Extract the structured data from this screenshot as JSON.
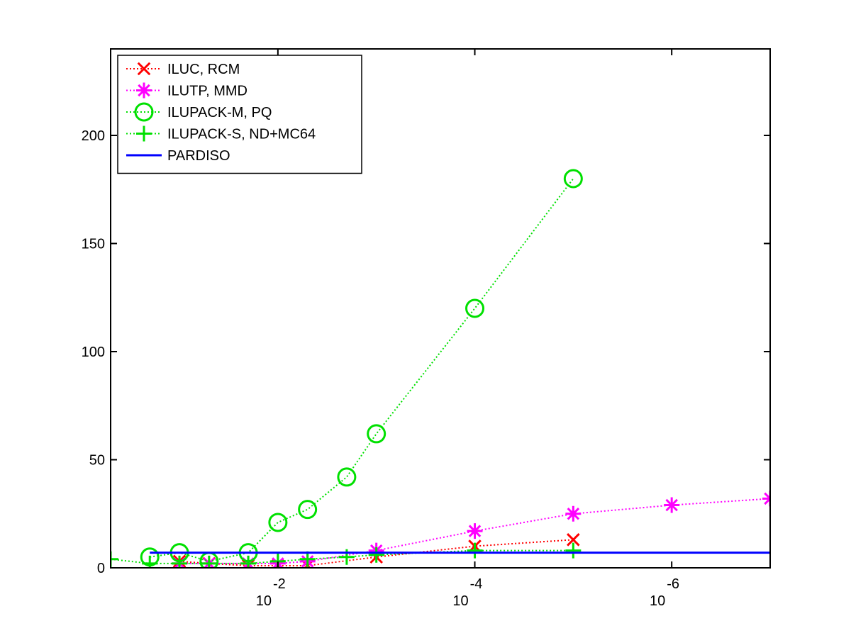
{
  "chart_data": {
    "type": "line",
    "title": "",
    "xlabel": "",
    "ylabel": "",
    "x_scale": "log-reversed",
    "xlim": [
      0.5,
      1e-07
    ],
    "ylim": [
      0,
      240
    ],
    "grid": false,
    "legend_position": "top-left",
    "x_ticks": [
      {
        "value": 0.01,
        "base": "10",
        "exp": "-2"
      },
      {
        "value": 0.0001,
        "base": "10",
        "exp": "-4"
      },
      {
        "value": 1e-06,
        "base": "10",
        "exp": "-6"
      }
    ],
    "y_ticks": [
      {
        "value": 0,
        "label": "0"
      },
      {
        "value": 50,
        "label": "50"
      },
      {
        "value": 100,
        "label": "100"
      },
      {
        "value": 150,
        "label": "150"
      },
      {
        "value": 200,
        "label": "200"
      }
    ],
    "series": [
      {
        "name": "ILUC, RCM",
        "color": "#ff0000",
        "marker": "x",
        "line": "dotted",
        "x": [
          0.1,
          0.05,
          0.02,
          0.01,
          0.005,
          0.001,
          0.0001,
          1e-05
        ],
        "y": [
          3,
          2,
          1,
          1,
          1,
          5,
          10,
          13
        ]
      },
      {
        "name": "ILUTP, MMD",
        "color": "#ff00ff",
        "marker": "star",
        "line": "dotted",
        "x": [
          0.1,
          0.05,
          0.02,
          0.01,
          0.005,
          0.001,
          0.0001,
          1e-05,
          1e-06,
          1e-07
        ],
        "y": [
          2,
          2,
          2,
          2,
          3,
          8,
          17,
          25,
          29,
          32
        ]
      },
      {
        "name": "ILUPACK-M, PQ",
        "color": "#00e000",
        "marker": "circle",
        "line": "dotted",
        "x": [
          0.2,
          0.1,
          0.05,
          0.02,
          0.01,
          0.005,
          0.002,
          0.001,
          0.0001,
          1e-05
        ],
        "y": [
          5,
          7,
          3,
          7,
          21,
          27,
          42,
          62,
          120,
          180
        ]
      },
      {
        "name": "ILUPACK-S, ND+MC64",
        "color": "#00e000",
        "marker": "plus",
        "line": "dotted",
        "x": [
          0.5,
          0.2,
          0.1,
          0.05,
          0.02,
          0.01,
          0.005,
          0.002,
          0.001,
          0.0001,
          1e-05
        ],
        "y": [
          4,
          2,
          2,
          2,
          2,
          3,
          4,
          5,
          6,
          8,
          8
        ]
      },
      {
        "name": "PARDISO",
        "color": "#0000ff",
        "marker": "none",
        "line": "solid",
        "x": [
          0.2,
          1e-07
        ],
        "y": [
          7,
          7
        ]
      }
    ]
  }
}
